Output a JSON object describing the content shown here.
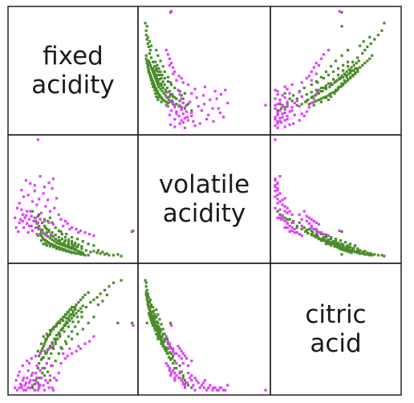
{
  "chart_data": {
    "type": "scatter",
    "variables": [
      "fixed acidity",
      "volatile acidity",
      "citric acid"
    ],
    "diagonal_labels": [
      [
        "fixed",
        "acidity"
      ],
      [
        "volatile",
        "acidity"
      ],
      [
        "citric",
        "acid"
      ]
    ],
    "ranges": {
      "fixed acidity": [
        4.6,
        15.6
      ],
      "volatile acidity": [
        0.12,
        1.58
      ],
      "citric acid": [
        0.0,
        1.0
      ]
    },
    "grid": false,
    "legend": "none",
    "colors": {
      "group_a": "#4a8c2a",
      "group_b": "#e040fb"
    },
    "series": [
      {
        "color": "#4a8c2a",
        "points": [
          [
            6.8,
            0.55,
            0.1
          ],
          [
            6.9,
            0.5,
            0.18
          ],
          [
            7.0,
            0.48,
            0.28
          ],
          [
            7.1,
            0.42,
            0.3
          ],
          [
            7.2,
            0.4,
            0.32
          ],
          [
            7.3,
            0.38,
            0.34
          ],
          [
            7.4,
            0.36,
            0.36
          ],
          [
            7.5,
            0.35,
            0.38
          ],
          [
            7.6,
            0.34,
            0.4
          ],
          [
            7.7,
            0.33,
            0.42
          ],
          [
            7.8,
            0.32,
            0.44
          ],
          [
            7.9,
            0.31,
            0.45
          ],
          [
            8.0,
            0.3,
            0.46
          ],
          [
            8.1,
            0.3,
            0.48
          ],
          [
            8.2,
            0.29,
            0.5
          ],
          [
            8.3,
            0.28,
            0.5
          ],
          [
            8.4,
            0.28,
            0.52
          ],
          [
            8.5,
            0.27,
            0.52
          ],
          [
            8.6,
            0.26,
            0.54
          ],
          [
            8.7,
            0.26,
            0.55
          ],
          [
            8.8,
            0.25,
            0.56
          ],
          [
            8.9,
            0.25,
            0.56
          ],
          [
            9.0,
            0.24,
            0.58
          ],
          [
            9.1,
            0.24,
            0.58
          ],
          [
            9.2,
            0.23,
            0.6
          ],
          [
            9.3,
            0.23,
            0.6
          ],
          [
            9.4,
            0.22,
            0.62
          ],
          [
            9.5,
            0.22,
            0.62
          ],
          [
            9.6,
            0.21,
            0.64
          ],
          [
            9.7,
            0.21,
            0.64
          ],
          [
            9.8,
            0.2,
            0.66
          ],
          [
            9.9,
            0.2,
            0.66
          ],
          [
            10.0,
            0.19,
            0.68
          ],
          [
            10.2,
            0.19,
            0.68
          ],
          [
            10.4,
            0.18,
            0.7
          ],
          [
            10.6,
            0.18,
            0.72
          ],
          [
            10.8,
            0.17,
            0.74
          ],
          [
            11.0,
            0.17,
            0.76
          ],
          [
            11.2,
            0.16,
            0.78
          ],
          [
            11.5,
            0.16,
            0.8
          ],
          [
            7.2,
            0.45,
            0.25
          ],
          [
            7.4,
            0.43,
            0.27
          ],
          [
            7.6,
            0.41,
            0.3
          ],
          [
            7.8,
            0.39,
            0.33
          ],
          [
            8.0,
            0.37,
            0.36
          ],
          [
            8.2,
            0.35,
            0.39
          ],
          [
            8.4,
            0.33,
            0.42
          ],
          [
            8.6,
            0.31,
            0.45
          ],
          [
            8.8,
            0.3,
            0.47
          ],
          [
            9.0,
            0.29,
            0.49
          ],
          [
            9.2,
            0.28,
            0.51
          ],
          [
            9.4,
            0.27,
            0.53
          ],
          [
            9.6,
            0.26,
            0.55
          ],
          [
            9.8,
            0.25,
            0.57
          ],
          [
            10.0,
            0.24,
            0.59
          ],
          [
            10.2,
            0.23,
            0.61
          ],
          [
            10.4,
            0.22,
            0.63
          ],
          [
            10.6,
            0.21,
            0.65
          ],
          [
            10.8,
            0.2,
            0.67
          ],
          [
            11.0,
            0.19,
            0.69
          ],
          [
            7.0,
            0.52,
            0.22
          ],
          [
            7.3,
            0.47,
            0.26
          ],
          [
            7.7,
            0.44,
            0.31
          ],
          [
            8.1,
            0.4,
            0.35
          ],
          [
            8.5,
            0.36,
            0.4
          ],
          [
            8.9,
            0.34,
            0.44
          ],
          [
            9.3,
            0.32,
            0.48
          ],
          [
            9.7,
            0.3,
            0.52
          ],
          [
            10.1,
            0.28,
            0.56
          ],
          [
            10.5,
            0.26,
            0.6
          ],
          [
            10.9,
            0.24,
            0.64
          ],
          [
            11.3,
            0.22,
            0.68
          ],
          [
            11.7,
            0.2,
            0.72
          ],
          [
            12.0,
            0.21,
            0.74
          ],
          [
            12.3,
            0.19,
            0.76
          ],
          [
            12.6,
            0.18,
            0.79
          ],
          [
            13.0,
            0.17,
            0.82
          ],
          [
            13.4,
            0.16,
            0.85
          ],
          [
            7.5,
            0.6,
            0.12
          ],
          [
            7.8,
            0.58,
            0.15
          ],
          [
            8.2,
            0.56,
            0.2
          ],
          [
            8.5,
            0.5,
            0.24
          ],
          [
            8.8,
            0.46,
            0.3
          ],
          [
            9.1,
            0.42,
            0.34
          ],
          [
            9.4,
            0.38,
            0.4
          ],
          [
            9.7,
            0.35,
            0.44
          ],
          [
            10.0,
            0.33,
            0.48
          ],
          [
            10.3,
            0.31,
            0.52
          ],
          [
            10.6,
            0.29,
            0.56
          ],
          [
            10.9,
            0.27,
            0.6
          ],
          [
            6.6,
            0.62,
            0.05
          ],
          [
            6.7,
            0.58,
            0.08
          ],
          [
            6.9,
            0.64,
            0.06
          ],
          [
            7.1,
            0.6,
            0.1
          ],
          [
            7.3,
            0.56,
            0.14
          ],
          [
            7.5,
            0.52,
            0.18
          ],
          [
            7.7,
            0.48,
            0.22
          ],
          [
            7.9,
            0.45,
            0.26
          ],
          [
            8.1,
            0.42,
            0.3
          ],
          [
            8.3,
            0.39,
            0.34
          ],
          [
            8.5,
            0.36,
            0.38
          ],
          [
            8.7,
            0.34,
            0.42
          ],
          [
            8.9,
            0.32,
            0.46
          ],
          [
            9.1,
            0.3,
            0.5
          ],
          [
            9.3,
            0.29,
            0.53
          ],
          [
            9.5,
            0.28,
            0.56
          ],
          [
            9.7,
            0.27,
            0.59
          ],
          [
            9.9,
            0.26,
            0.62
          ],
          [
            10.1,
            0.25,
            0.65
          ],
          [
            10.3,
            0.24,
            0.68
          ],
          [
            7.4,
            0.3,
            0.44
          ],
          [
            7.7,
            0.28,
            0.46
          ],
          [
            8.0,
            0.27,
            0.49
          ],
          [
            8.3,
            0.26,
            0.51
          ],
          [
            8.6,
            0.24,
            0.53
          ],
          [
            8.9,
            0.23,
            0.55
          ],
          [
            9.2,
            0.22,
            0.57
          ],
          [
            9.5,
            0.21,
            0.59
          ],
          [
            9.8,
            0.2,
            0.61
          ],
          [
            10.1,
            0.19,
            0.63
          ],
          [
            7.6,
            0.5,
            0.3
          ],
          [
            7.9,
            0.47,
            0.34
          ],
          [
            8.2,
            0.44,
            0.38
          ],
          [
            8.5,
            0.41,
            0.42
          ],
          [
            8.8,
            0.38,
            0.46
          ],
          [
            9.1,
            0.36,
            0.5
          ],
          [
            9.4,
            0.34,
            0.54
          ],
          [
            9.7,
            0.32,
            0.58
          ],
          [
            10.0,
            0.3,
            0.62
          ],
          [
            10.3,
            0.28,
            0.66
          ],
          [
            14.2,
            0.17,
            0.55
          ],
          [
            15.5,
            0.45,
            0.55
          ],
          [
            6.4,
            0.7,
            0.02
          ],
          [
            7.0,
            0.66,
            0.04
          ],
          [
            8.0,
            0.62,
            0.08
          ],
          [
            12.4,
            0.22,
            0.7
          ],
          [
            12.8,
            0.2,
            0.73
          ],
          [
            13.2,
            0.18,
            0.78
          ],
          [
            13.8,
            0.16,
            0.88
          ],
          [
            14.5,
            0.15,
            0.9
          ],
          [
            9.0,
            0.45,
            0.35
          ],
          [
            9.5,
            0.42,
            0.38
          ],
          [
            10.0,
            0.38,
            0.42
          ],
          [
            10.5,
            0.36,
            0.46
          ],
          [
            11.0,
            0.33,
            0.5
          ],
          [
            11.5,
            0.3,
            0.55
          ],
          [
            12.0,
            0.28,
            0.6
          ],
          [
            6.9,
            0.4,
            0.32
          ],
          [
            7.2,
            0.34,
            0.38
          ],
          [
            7.6,
            0.3,
            0.42
          ]
        ]
      },
      {
        "color": "#e040fb",
        "points": [
          [
            5.0,
            0.74,
            0.0
          ],
          [
            5.2,
            0.8,
            0.02
          ],
          [
            5.4,
            0.72,
            0.04
          ],
          [
            5.6,
            0.88,
            0.0
          ],
          [
            5.8,
            0.65,
            0.06
          ],
          [
            6.0,
            0.9,
            0.02
          ],
          [
            6.2,
            0.7,
            0.08
          ],
          [
            6.4,
            0.82,
            0.04
          ],
          [
            6.6,
            0.95,
            0.0
          ],
          [
            6.8,
            0.78,
            0.06
          ],
          [
            7.0,
            0.85,
            0.02
          ],
          [
            7.2,
            0.68,
            0.1
          ],
          [
            7.4,
            0.92,
            0.04
          ],
          [
            7.6,
            0.76,
            0.08
          ],
          [
            7.8,
            0.84,
            0.06
          ],
          [
            8.0,
            0.7,
            0.12
          ],
          [
            8.2,
            0.98,
            0.02
          ],
          [
            8.4,
            0.74,
            0.1
          ],
          [
            8.6,
            0.86,
            0.08
          ],
          [
            8.8,
            0.66,
            0.14
          ],
          [
            5.3,
            0.6,
            0.05
          ],
          [
            5.5,
            0.58,
            0.08
          ],
          [
            5.7,
            0.62,
            0.04
          ],
          [
            5.9,
            0.55,
            0.1
          ],
          [
            6.1,
            0.6,
            0.06
          ],
          [
            6.3,
            0.52,
            0.12
          ],
          [
            6.5,
            0.58,
            0.08
          ],
          [
            6.7,
            0.5,
            0.14
          ],
          [
            6.9,
            0.56,
            0.1
          ],
          [
            7.1,
            0.48,
            0.16
          ],
          [
            4.8,
            0.62,
            0.02
          ],
          [
            4.9,
            0.5,
            0.08
          ],
          [
            5.1,
            0.45,
            0.12
          ],
          [
            5.6,
            0.5,
            0.1
          ],
          [
            6.0,
            0.44,
            0.16
          ],
          [
            6.4,
            0.46,
            0.14
          ],
          [
            6.8,
            0.42,
            0.2
          ],
          [
            7.3,
            0.44,
            0.18
          ],
          [
            7.7,
            0.4,
            0.22
          ],
          [
            8.1,
            0.42,
            0.2
          ],
          [
            7.5,
            1.0,
            0.0
          ],
          [
            7.9,
            1.05,
            0.02
          ],
          [
            8.3,
            1.1,
            0.0
          ],
          [
            7.1,
            1.13,
            0.04
          ],
          [
            6.6,
            1.02,
            0.0
          ],
          [
            6.2,
            1.04,
            0.02
          ],
          [
            5.8,
            1.08,
            0.0
          ],
          [
            5.4,
            0.96,
            0.02
          ],
          [
            9.0,
            0.6,
            0.22
          ],
          [
            9.4,
            0.58,
            0.26
          ],
          [
            9.6,
            0.55,
            0.28
          ],
          [
            10.0,
            0.5,
            0.3
          ],
          [
            10.4,
            0.48,
            0.32
          ],
          [
            10.8,
            0.46,
            0.34
          ],
          [
            11.2,
            0.44,
            0.38
          ],
          [
            11.6,
            0.42,
            0.4
          ],
          [
            12.0,
            0.4,
            0.44
          ],
          [
            9.2,
            0.52,
            0.3
          ],
          [
            9.8,
            0.48,
            0.34
          ],
          [
            10.6,
            0.44,
            0.36
          ],
          [
            5.5,
            0.66,
            0.2
          ],
          [
            5.9,
            0.7,
            0.24
          ],
          [
            6.3,
            0.64,
            0.26
          ],
          [
            6.7,
            0.62,
            0.28
          ],
          [
            7.1,
            0.6,
            0.3
          ],
          [
            7.5,
            0.58,
            0.32
          ],
          [
            7.9,
            0.56,
            0.34
          ],
          [
            8.3,
            0.54,
            0.36
          ],
          [
            5.2,
            0.56,
            0.15
          ],
          [
            6.1,
            0.52,
            0.22
          ],
          [
            6.9,
            1.58,
            0.0
          ],
          [
            15.6,
            0.46,
            0.53
          ]
        ]
      }
    ]
  }
}
